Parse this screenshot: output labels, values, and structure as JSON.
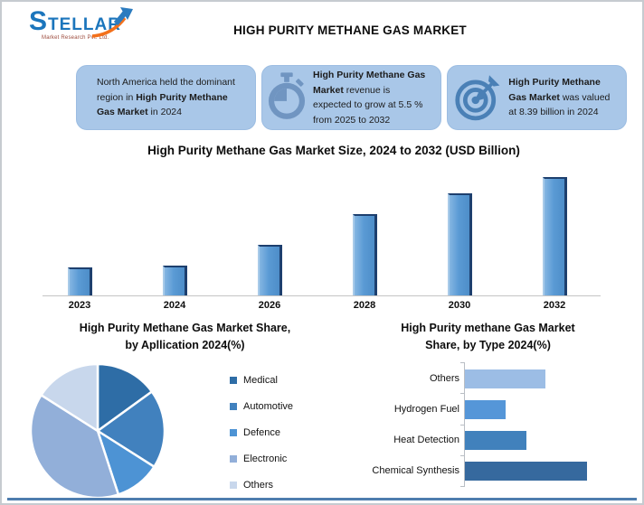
{
  "page": {
    "background": "#ffffff",
    "border_color": "#c6cbd0",
    "bottom_rule_color": "#4E7DAE"
  },
  "header": {
    "title": "HIGH PURITY METHANE GAS MARKET",
    "logo": {
      "brand": "STELLAR",
      "tagline": "Market Research Pvt. Ltd.",
      "brand_color": "#1B75BC",
      "arrow_orange": "#F3701B",
      "tagline_color": "#9C4A3C"
    }
  },
  "highlight_boxes": {
    "bg_color": "#A9C7E8",
    "box1": {
      "pre": "North America held the dominant region in ",
      "bold": "High Purity Methane Gas Market",
      "post": " in 2024"
    },
    "box2": {
      "icon": "stopwatch-icon",
      "bold": "High Purity Methane Gas Market",
      "post": " revenue is expected to grow at 5.5 % from 2025 to 2032"
    },
    "box3": {
      "icon": "target-icon",
      "bold": "High Purity Methane Gas Market",
      "post": " was valued at 8.39 billion in 2024"
    }
  },
  "chart_data": [
    {
      "type": "bar",
      "orientation": "vertical",
      "title": "High Purity Methane Gas Market Size, 2024 to 2032 (USD Billion)",
      "categories": [
        "2023",
        "2024",
        "2026",
        "2028",
        "2030",
        "2032"
      ],
      "values": [
        24,
        25,
        43,
        69,
        86,
        100
      ],
      "values_unit": "relative bar height, % of tallest bar (no value axis shown)",
      "stated_value_2024_usd_billion": 8.39,
      "stated_growth_pct_2025_2032": 5.5,
      "bar_color": "#5B9BD5",
      "bar_edge_color": "#1D3F6E",
      "gridlines": false,
      "value_axis_visible": false
    },
    {
      "type": "pie",
      "title": "High Purity Methane Gas Market Share, by Apllication 2024(%)",
      "title_line1": "High Purity Methane Gas Market Share,",
      "title_line2": "by Apllication 2024(%)",
      "labels": [
        "Medical",
        "Automotive",
        "Defence",
        "Electronic",
        "Others"
      ],
      "values": [
        15,
        19,
        11,
        39,
        16
      ],
      "values_unit": "% (estimated from slice angles; no data labels shown)",
      "colors": [
        "#2E6DA6",
        "#4181BE",
        "#4D93D4",
        "#92AFD9",
        "#C8D7EC"
      ],
      "legend_position": "right",
      "start_angle_deg": 0,
      "clockwise": true
    },
    {
      "type": "bar",
      "orientation": "horizontal",
      "title": "High Purity methane Gas Market Share, by Type 2024(%)",
      "title_line1": "High Purity methane Gas Market",
      "title_line2": "Share, by Type 2024(%)",
      "categories": [
        "Others",
        "Hydrogen Fuel",
        "Heat Detection",
        "Chemical Synthesis"
      ],
      "values": [
        66,
        33,
        50,
        100
      ],
      "values_unit": "relative bar length, % of longest bar (no value axis shown)",
      "colors": [
        "#9CBDE5",
        "#5596D8",
        "#4181BC",
        "#36699E"
      ],
      "gridlines": false,
      "value_axis_visible": false
    }
  ]
}
